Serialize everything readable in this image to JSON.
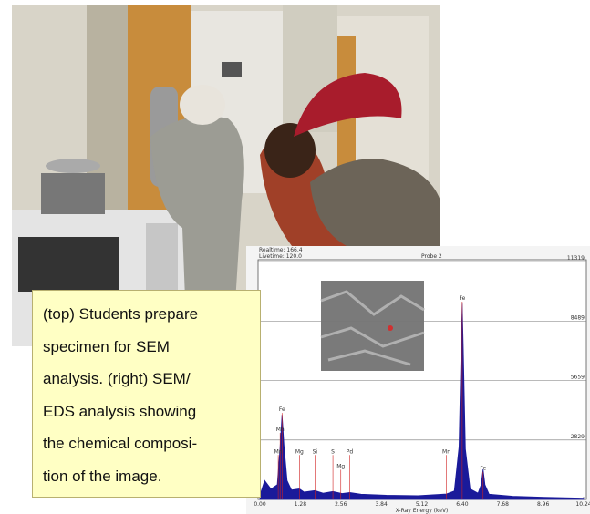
{
  "caption": {
    "lines": [
      "(top) Students prepare",
      "specimen for SEM",
      "analysis. (right) SEM/",
      "EDS analysis showing",
      "the chemical composi-",
      "tion of the image."
    ]
  },
  "chart_data": {
    "type": "area",
    "header": {
      "realtime": "Realtime: 166.4",
      "livetime": "Livetime: 120.0",
      "probe": "Probe 2"
    },
    "xlabel": "X-Ray Energy (keV)",
    "color": "#1a1a9a",
    "x": [
      0,
      0.15,
      0.35,
      0.55,
      0.64,
      0.7,
      0.76,
      0.86,
      1.0,
      1.25,
      1.4,
      1.74,
      2.0,
      2.31,
      2.6,
      2.84,
      3.2,
      4.0,
      5.0,
      5.9,
      6.15,
      6.3,
      6.37,
      6.4,
      6.43,
      6.5,
      6.65,
      6.9,
      7.0,
      7.06,
      7.12,
      7.25,
      8.0,
      9.0,
      10.24
    ],
    "values": [
      200,
      900,
      500,
      700,
      2500,
      4030,
      2600,
      900,
      450,
      500,
      350,
      420,
      300,
      380,
      280,
      330,
      250,
      200,
      180,
      260,
      400,
      2500,
      7500,
      9320,
      7400,
      2400,
      500,
      300,
      700,
      1430,
      700,
      250,
      150,
      100,
      60
    ],
    "xlim": [
      0,
      10.24
    ],
    "ylim": [
      0,
      11319
    ],
    "xticks": [
      {
        "value": 0,
        "label": "0.00"
      },
      1.28,
      2.56,
      3.84,
      5.12,
      {
        "value": 6.4,
        "label": "6.40"
      },
      7.68,
      8.96,
      10.24
    ],
    "yticks": [
      2829,
      5659,
      8489,
      11319
    ],
    "grid": true,
    "peak_labels": [
      {
        "label": "Fe",
        "x": 0.7,
        "y": 4200
      },
      {
        "label": "Mn",
        "x": 0.64,
        "y": 3250
      },
      {
        "label": "Mn",
        "x": 0.58,
        "y": 2200
      },
      {
        "label": "Mg",
        "x": 1.25,
        "y": 2200
      },
      {
        "label": "Si",
        "x": 1.74,
        "y": 2200
      },
      {
        "label": "S",
        "x": 2.31,
        "y": 2200
      },
      {
        "label": "Pd",
        "x": 2.84,
        "y": 2200
      },
      {
        "label": "Mg",
        "x": 2.56,
        "y": 1500
      },
      {
        "label": "Mn",
        "x": 5.9,
        "y": 2200
      },
      {
        "label": "Fe",
        "x": 6.4,
        "y": 9500
      },
      {
        "label": "Fe",
        "x": 7.06,
        "y": 1400
      }
    ]
  }
}
